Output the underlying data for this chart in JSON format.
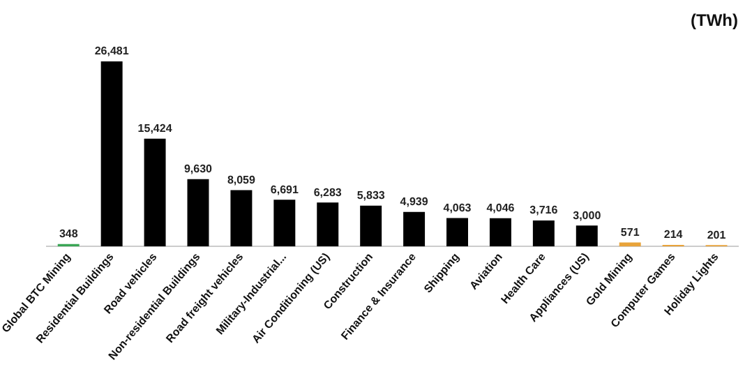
{
  "chart_data": {
    "type": "bar",
    "title": "(TWh)",
    "categories": [
      "Global BTC Mining",
      "Residential Buildings",
      "Road vehicles",
      "Non-residential Buildings",
      "Road freight vehicles",
      "Military-Industrial...",
      "Air Conditioning (US)",
      "Construction",
      "Finance & Insurance",
      "Shipping",
      "Aviation",
      "Health Care",
      "Appliances (US)",
      "Gold Mining",
      "Computer Games",
      "Holiday Lights"
    ],
    "values": [
      348,
      26481,
      15424,
      9630,
      8059,
      6691,
      6283,
      5833,
      4939,
      4063,
      4046,
      3716,
      3000,
      571,
      214,
      201
    ],
    "value_labels": [
      "348",
      "26,481",
      "15,424",
      "9,630",
      "8,059",
      "6,691",
      "6,283",
      "5,833",
      "4,939",
      "4,063",
      "4,046",
      "3,716",
      "3,000",
      "571",
      "214",
      "201"
    ],
    "colors": [
      "#3aa655",
      "#000000",
      "#000000",
      "#000000",
      "#000000",
      "#000000",
      "#000000",
      "#000000",
      "#000000",
      "#000000",
      "#000000",
      "#000000",
      "#000000",
      "#e8a33a",
      "#e8a33a",
      "#e8a33a"
    ],
    "grid": false,
    "legend": false
  }
}
